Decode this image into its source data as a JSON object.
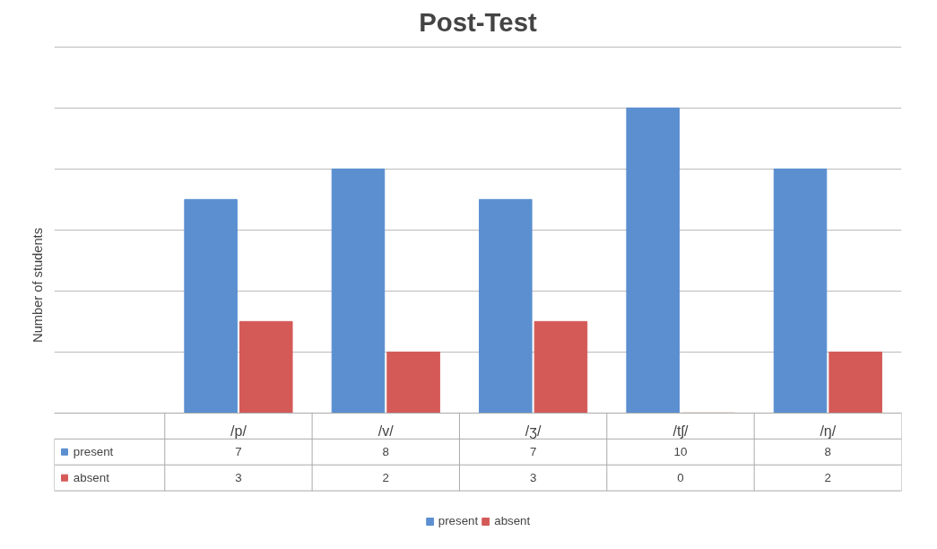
{
  "chart_data": {
    "type": "bar",
    "title": "Post-Test",
    "ylabel": "Number of students",
    "categories": [
      "/p/",
      "/v/",
      "/ʒ/",
      "/tʃ/",
      "/ŋ/"
    ],
    "series": [
      {
        "name": "present",
        "color": "#5b8fd0",
        "values": [
          7,
          8,
          7,
          10,
          8
        ]
      },
      {
        "name": "absent",
        "color": "#d45a58",
        "values": [
          3,
          2,
          3,
          0,
          2
        ]
      }
    ],
    "grid": "y",
    "tick_labels": "x",
    "data_labels": true,
    "legend": "bottom"
  }
}
